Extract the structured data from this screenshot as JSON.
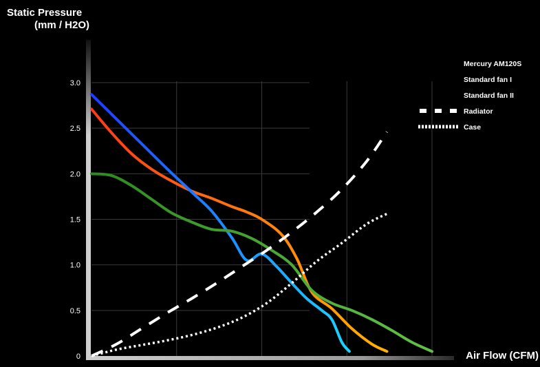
{
  "chart_data": {
    "type": "line",
    "ylabel_line1": "Static Pressure",
    "ylabel_line2": "(mm / H2O)",
    "xlabel": "Air Flow (CFM)",
    "ylim": [
      0,
      3.0
    ],
    "xlim": [
      0,
      68
    ],
    "y_ticks": [
      "0",
      "0.5",
      "1.0",
      "1.5",
      "2.0",
      "2.5",
      "3.0"
    ],
    "x_ticks": [
      "17",
      "34",
      "51",
      "68"
    ],
    "grid": true,
    "legend_position": "top-right",
    "series": [
      {
        "name": "Mercury AM120S",
        "style": "solid",
        "color_start": "#ff3a1a",
        "color_end": "#ffb300",
        "x": [
          0,
          4,
          8,
          12,
          16,
          20,
          24,
          28,
          31,
          34,
          38,
          41,
          44,
          48,
          52,
          56,
          59
        ],
        "y": [
          2.71,
          2.45,
          2.22,
          2.05,
          1.92,
          1.81,
          1.73,
          1.64,
          1.58,
          1.5,
          1.33,
          1.07,
          0.7,
          0.52,
          0.3,
          0.13,
          0.05
        ]
      },
      {
        "name": "Standard fan I",
        "style": "solid",
        "color_start": "#1f3cff",
        "color_end": "#19d4ff",
        "x": [
          0,
          5,
          10,
          15,
          20,
          24,
          28,
          31,
          34,
          37,
          40,
          43,
          46,
          48,
          50,
          51.5
        ],
        "y": [
          2.87,
          2.6,
          2.33,
          2.06,
          1.8,
          1.59,
          1.3,
          1.05,
          1.12,
          0.98,
          0.8,
          0.63,
          0.5,
          0.4,
          0.15,
          0.05
        ]
      },
      {
        "name": "Standard fan II",
        "style": "solid",
        "color_start": "#2c8a1e",
        "color_end": "#62c246",
        "x": [
          0,
          4,
          8,
          12,
          16,
          20,
          24,
          28,
          32,
          36,
          40,
          44,
          48,
          52,
          56,
          60,
          64,
          68
        ],
        "y": [
          2.0,
          1.98,
          1.87,
          1.72,
          1.57,
          1.47,
          1.39,
          1.37,
          1.29,
          1.16,
          1.0,
          0.72,
          0.58,
          0.5,
          0.4,
          0.28,
          0.15,
          0.05
        ]
      },
      {
        "name": "Radiator",
        "style": "dashed",
        "color_start": "#ffffff",
        "color_end": "#ffffff",
        "x": [
          0,
          5,
          10,
          15,
          20,
          25,
          30,
          35,
          40,
          45,
          50,
          55,
          59
        ],
        "y": [
          0,
          0.13,
          0.3,
          0.47,
          0.63,
          0.8,
          0.98,
          1.16,
          1.36,
          1.58,
          1.83,
          2.14,
          2.46
        ]
      },
      {
        "name": "Case",
        "style": "dotted",
        "color_start": "#ffffff",
        "color_end": "#ffffff",
        "x": [
          0,
          5,
          10,
          15,
          20,
          25,
          30,
          35,
          40,
          45,
          50,
          55,
          59
        ],
        "y": [
          0,
          0.07,
          0.12,
          0.17,
          0.23,
          0.31,
          0.42,
          0.58,
          0.8,
          1.04,
          1.24,
          1.45,
          1.56
        ]
      }
    ]
  }
}
